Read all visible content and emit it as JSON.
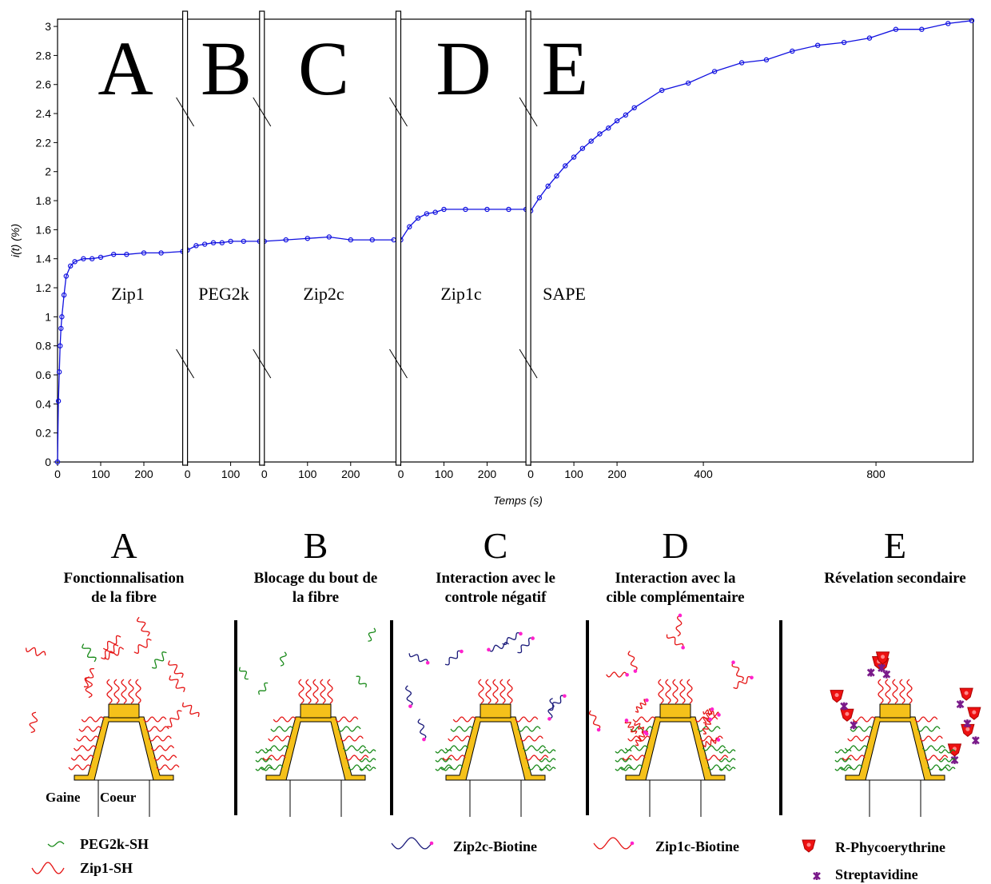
{
  "chart_data": {
    "type": "line",
    "ylabel": "i(t) (%)",
    "xlabel": "Temps (s)",
    "ylim": [
      0,
      3.05
    ],
    "yticks": [
      0,
      0.2,
      0.4,
      0.6,
      0.8,
      1,
      1.2,
      1.4,
      1.6,
      1.8,
      2,
      2.2,
      2.4,
      2.6,
      2.8,
      3
    ],
    "series": [
      {
        "name": "Zip1",
        "letter": "A",
        "color": "#1010e0",
        "xlim": [
          0,
          290
        ],
        "xticks": [
          0,
          100,
          200
        ],
        "x": [
          0,
          2,
          4,
          6,
          8,
          10,
          15,
          20,
          30,
          40,
          60,
          80,
          100,
          130,
          160,
          200,
          240,
          290
        ],
        "values": [
          0,
          0.42,
          0.62,
          0.8,
          0.92,
          1.0,
          1.15,
          1.28,
          1.35,
          1.38,
          1.4,
          1.4,
          1.41,
          1.43,
          1.43,
          1.44,
          1.44,
          1.45
        ]
      },
      {
        "name": "PEG2k",
        "letter": "B",
        "color": "#1010e0",
        "xlim": [
          0,
          167
        ],
        "xticks": [
          0,
          100
        ],
        "x": [
          0,
          20,
          40,
          60,
          80,
          100,
          130,
          167
        ],
        "values": [
          1.46,
          1.49,
          1.5,
          1.51,
          1.51,
          1.52,
          1.52,
          1.52
        ]
      },
      {
        "name": "Zip2c",
        "letter": "C",
        "color": "#1010e0",
        "xlim": [
          0,
          305
        ],
        "xticks": [
          0,
          100,
          200
        ],
        "x": [
          0,
          50,
          100,
          150,
          200,
          250,
          300
        ],
        "values": [
          1.52,
          1.53,
          1.54,
          1.55,
          1.53,
          1.53,
          1.53
        ]
      },
      {
        "name": "Zip1c",
        "letter": "D",
        "color": "#1010e0",
        "xlim": [
          0,
          290
        ],
        "xticks": [
          0,
          100,
          200
        ],
        "x": [
          0,
          20,
          40,
          60,
          80,
          100,
          150,
          200,
          250,
          290
        ],
        "values": [
          1.53,
          1.62,
          1.68,
          1.71,
          1.72,
          1.74,
          1.74,
          1.74,
          1.74,
          1.74
        ]
      },
      {
        "name": "SAPE",
        "letter": "E",
        "color": "#1010e0",
        "xlim": [
          0,
          1025
        ],
        "xticks": [
          0,
          100,
          200,
          400,
          800
        ],
        "x": [
          0,
          20,
          40,
          60,
          80,
          100,
          120,
          140,
          160,
          180,
          200,
          220,
          240,
          304,
          365,
          426,
          489,
          546,
          606,
          665,
          726,
          785,
          846,
          906,
          967,
          1022
        ],
        "values": [
          1.73,
          1.82,
          1.9,
          1.97,
          2.04,
          2.1,
          2.16,
          2.21,
          2.26,
          2.3,
          2.35,
          2.39,
          2.44,
          2.56,
          2.61,
          2.69,
          2.75,
          2.77,
          2.83,
          2.87,
          2.89,
          2.92,
          2.98,
          2.98,
          3.02,
          3.04
        ]
      }
    ]
  },
  "diagram": {
    "panels": [
      {
        "letter": "A",
        "title": [
          "Fonctionnalisation",
          "de la fibre"
        ]
      },
      {
        "letter": "B",
        "title": [
          "Blocage du bout de",
          "la fibre"
        ]
      },
      {
        "letter": "C",
        "title": [
          "Interaction avec le",
          "controle négatif"
        ]
      },
      {
        "letter": "D",
        "title": [
          "Interaction avec la",
          "cible complémentaire"
        ]
      },
      {
        "letter": "E",
        "title": [
          "Révelation secondaire"
        ]
      }
    ],
    "labels": [
      "Gaine",
      "Coeur"
    ],
    "legend": [
      "PEG2k-SH",
      "Zip1-SH",
      "Zip2c-Biotine",
      "Zip1c-Biotine",
      "R-Phycoerythrine",
      "Streptavidine"
    ]
  }
}
